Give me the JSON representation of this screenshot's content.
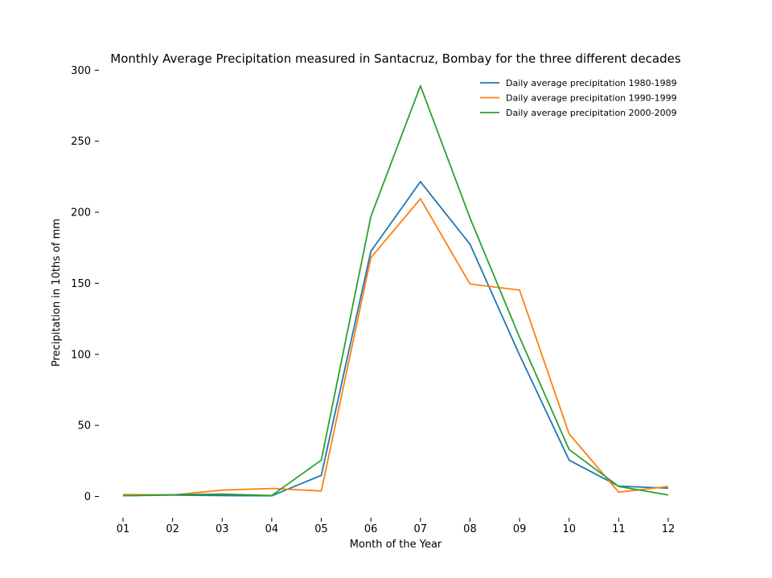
{
  "chart_data": {
    "type": "line",
    "title": "Monthly Average Precipitation measured in Santacruz, Bombay for the three different decades",
    "xlabel": "Month of the Year",
    "ylabel": "Precipitation in 10ths of mm",
    "categories": [
      "01",
      "02",
      "03",
      "04",
      "05",
      "06",
      "07",
      "08",
      "09",
      "10",
      "11",
      "12"
    ],
    "ylim": [
      -15,
      303
    ],
    "yticks": [
      0,
      50,
      100,
      150,
      200,
      250,
      300
    ],
    "grid": false,
    "legend_position": "top-right",
    "series": [
      {
        "name": "Daily average precipitation 1980-1989",
        "color": "#1f77b4",
        "values": [
          0.5,
          0.9,
          0.6,
          0.4,
          14.8,
          172.5,
          221.5,
          177.5,
          99.5,
          25.5,
          7.2,
          5.8
        ]
      },
      {
        "name": "Daily average precipitation 1990-1999",
        "color": "#ff7f0e",
        "values": [
          1.3,
          1.0,
          4.4,
          5.6,
          3.8,
          168.0,
          209.5,
          149.5,
          145.2,
          44.0,
          3.0,
          7.0
        ]
      },
      {
        "name": "Daily average precipitation 2000-2009",
        "color": "#2ca02c",
        "values": [
          0.5,
          1.2,
          1.6,
          0.6,
          25.5,
          197.0,
          289.0,
          196.0,
          112.0,
          33.0,
          7.0,
          1.0
        ]
      }
    ]
  }
}
